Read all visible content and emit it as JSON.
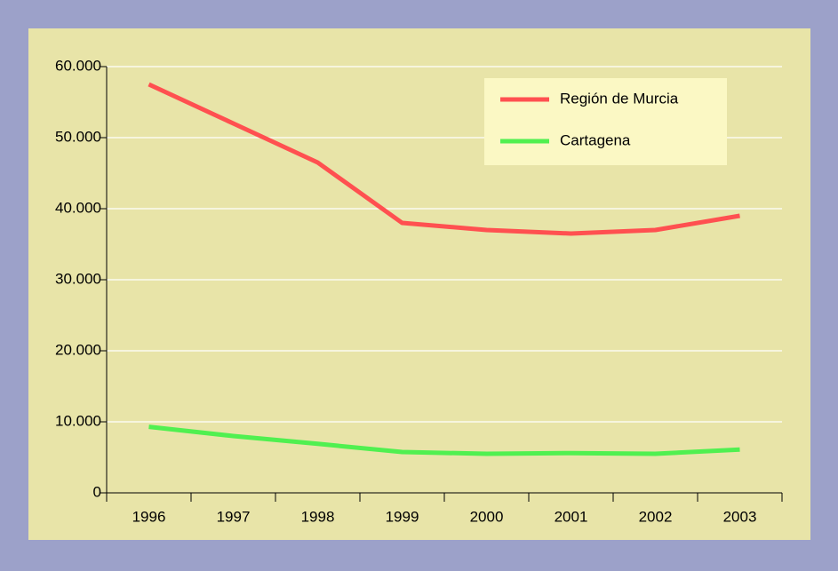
{
  "chart_data": {
    "type": "line",
    "categories": [
      "1996",
      "1997",
      "1998",
      "1999",
      "2000",
      "2001",
      "2002",
      "2003"
    ],
    "series": [
      {
        "name": "Región de Murcia",
        "color": "#ff5050",
        "values": [
          57500,
          52000,
          46500,
          38000,
          37000,
          36500,
          37000,
          39000
        ]
      },
      {
        "name": "Cartagena",
        "color": "#50f050",
        "values": [
          9300,
          8000,
          6900,
          5750,
          5500,
          5600,
          5500,
          6100
        ]
      }
    ],
    "ylim": [
      0,
      60000
    ],
    "yticks": [
      0,
      {
        "value": 10000,
        "label": "10.000"
      },
      {
        "value": 20000,
        "label": "20.000"
      },
      {
        "value": 30000,
        "label": "30.000"
      },
      {
        "value": 40000,
        "label": "40.000"
      },
      {
        "value": 50000,
        "label": "50.000"
      },
      {
        "value": 60000,
        "label": "60.000"
      }
    ],
    "grid": true,
    "legend": "upper right"
  }
}
